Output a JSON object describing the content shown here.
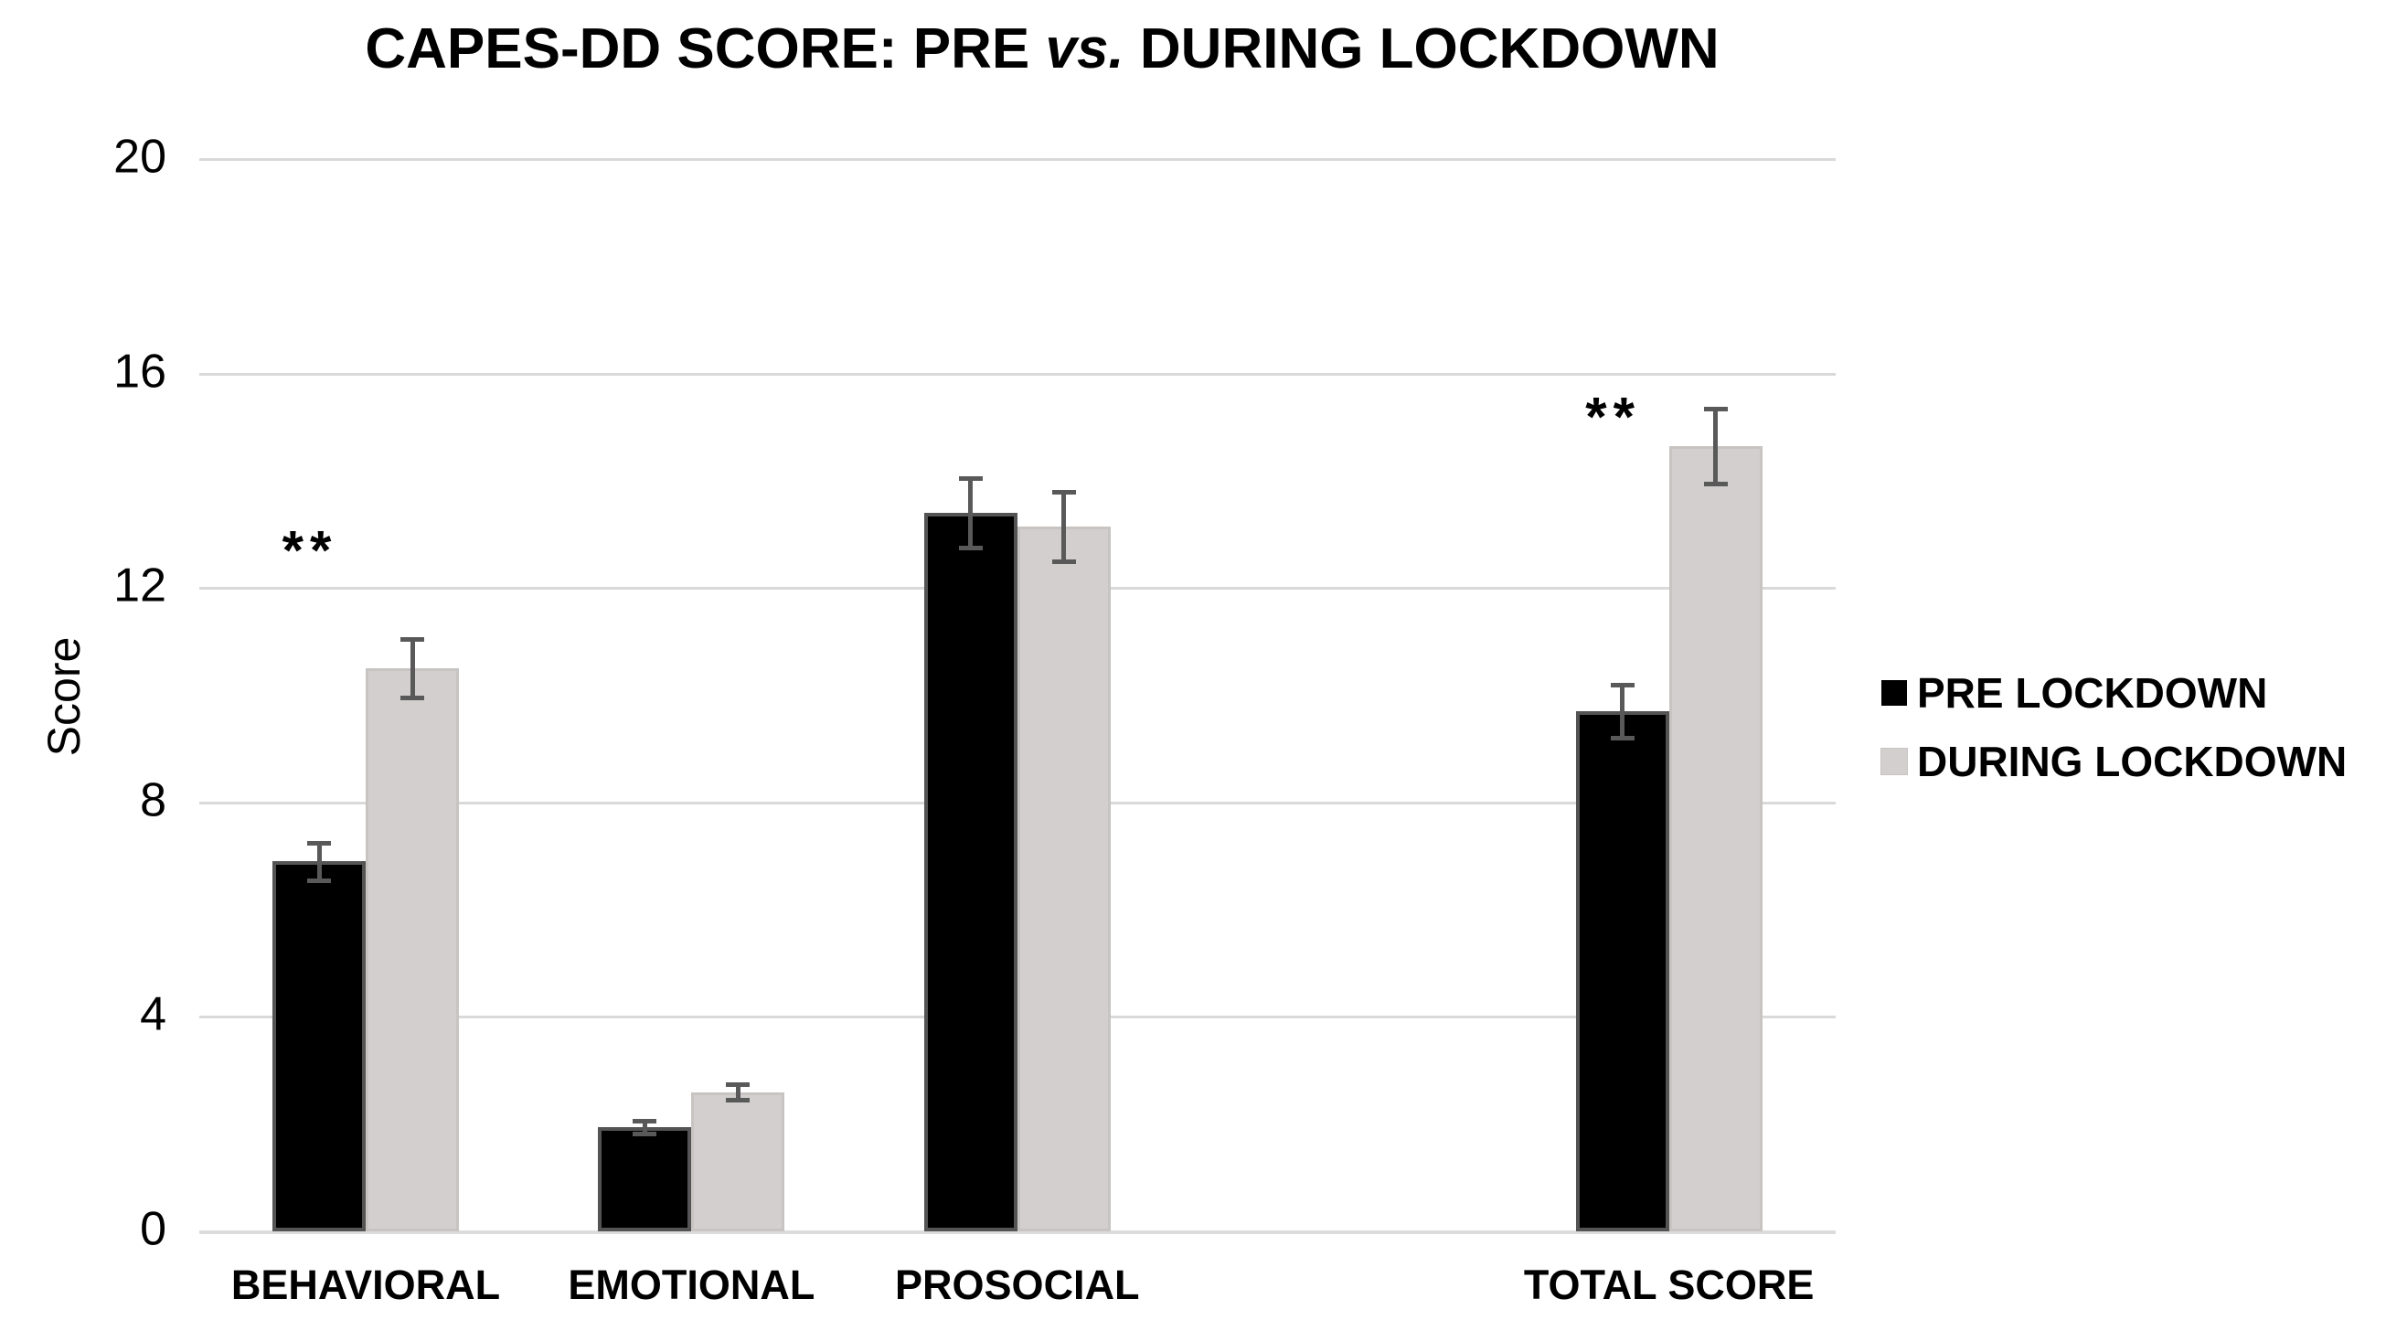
{
  "title": {
    "prefix": "CAPES-DD SCORE: PRE ",
    "italic": "vs.",
    "suffix": " DURING LOCKDOWN"
  },
  "chart_data": {
    "type": "bar",
    "title": "CAPES-DD SCORE: PRE vs. DURING LOCKDOWN",
    "xlabel": "",
    "ylabel": "Score",
    "ylim": [
      0,
      20
    ],
    "yticks": [
      0,
      4,
      8,
      12,
      16,
      20
    ],
    "grid": true,
    "legend_position": "right",
    "categories": [
      "BEHAVIORAL",
      "EMOTIONAL",
      "PROSOCIAL",
      "TOTAL SCORE"
    ],
    "category_slots": [
      0,
      1,
      2,
      4
    ],
    "series": [
      {
        "name": "PRE LOCKDOWN",
        "color": "#000000",
        "values": [
          6.9,
          1.95,
          13.4,
          9.7
        ],
        "errors": [
          0.35,
          0.12,
          0.65,
          0.5
        ]
      },
      {
        "name": "DURING LOCKDOWN",
        "color": "#d2cfce",
        "values": [
          10.5,
          2.6,
          13.15,
          14.65
        ],
        "errors": [
          0.55,
          0.14,
          0.65,
          0.7
        ]
      }
    ],
    "annotations": [
      {
        "text": "**",
        "category": "BEHAVIORAL",
        "y": 12.7
      },
      {
        "text": "**",
        "category": "TOTAL SCORE",
        "y": 15.2
      }
    ],
    "colors": {
      "gridline": "#d9d9d9",
      "error_bar": "#595959",
      "text": "#000000"
    }
  }
}
